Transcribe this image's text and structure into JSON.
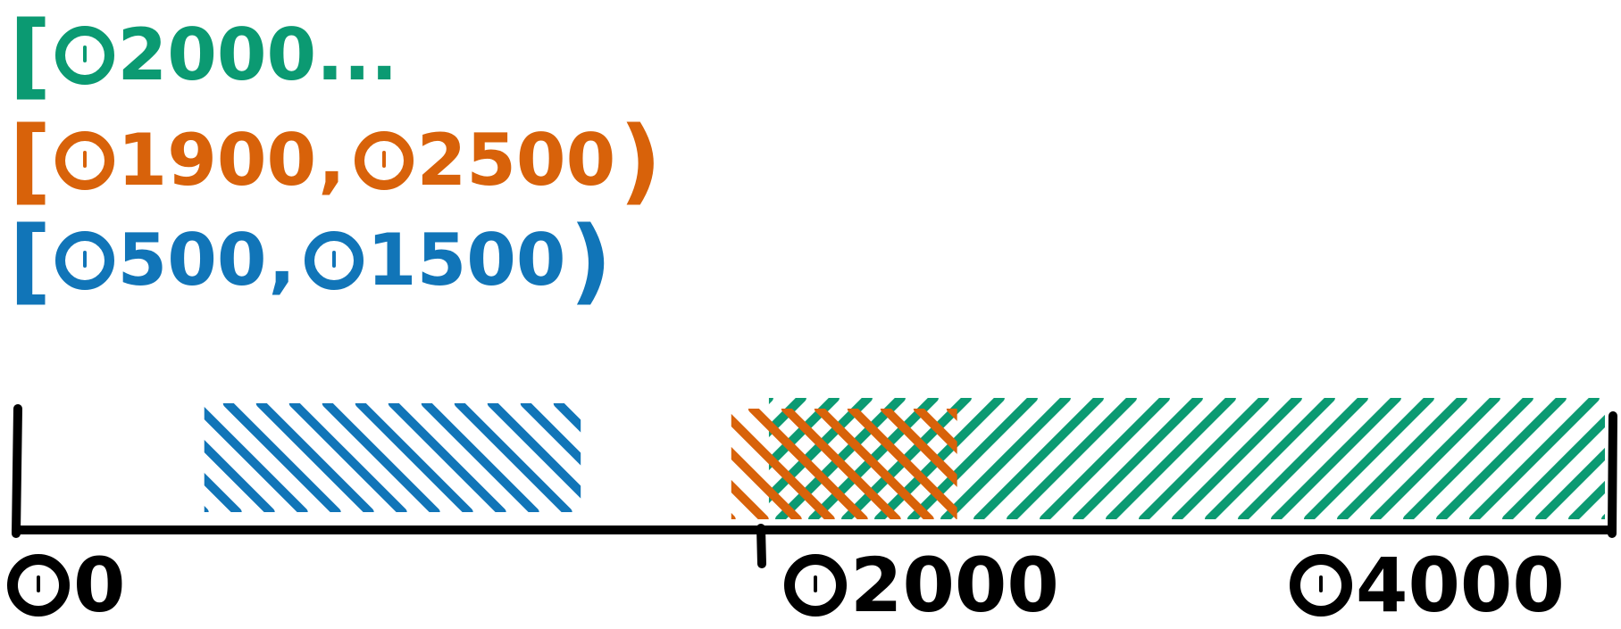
{
  "intervals": [
    {
      "id": "green",
      "color": "#0b9a72",
      "open_bracket": "[",
      "start": "2000",
      "trailing": "...",
      "start_value": 2000,
      "end_value": null
    },
    {
      "id": "orange",
      "color": "#d8620a",
      "open_bracket": "[",
      "start": "1900",
      "separator": ",",
      "end": "2500",
      "close_bracket": ")",
      "start_value": 1900,
      "end_value": 2500
    },
    {
      "id": "blue",
      "color": "#1175b8",
      "open_bracket": "[",
      "start": "500",
      "separator": ",",
      "end": "1500",
      "close_bracket": ")",
      "start_value": 500,
      "end_value": 1500
    }
  ],
  "axis": {
    "ticks": [
      "0",
      "2000",
      "4000"
    ],
    "tick_values": [
      0,
      2000,
      4000
    ],
    "min": 0,
    "max": 4000
  }
}
